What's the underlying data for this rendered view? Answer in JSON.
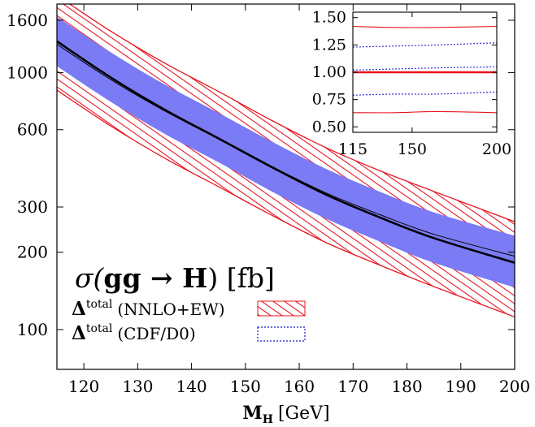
{
  "chart_data": [
    {
      "type": "area",
      "ylog": true,
      "xlim": [
        115,
        200
      ],
      "ylim": [
        70,
        1850
      ],
      "xticks": [
        {
          "v": 120,
          "label": "120"
        },
        {
          "v": 130,
          "label": "130"
        },
        {
          "v": 140,
          "label": "140"
        },
        {
          "v": 150,
          "label": "150"
        },
        {
          "v": 160,
          "label": "160"
        },
        {
          "v": 170,
          "label": "170"
        },
        {
          "v": 180,
          "label": "180"
        },
        {
          "v": 190,
          "label": "190"
        },
        {
          "v": 200,
          "label": "200"
        }
      ],
      "yticks": [
        {
          "v": 100,
          "label": "100"
        },
        {
          "v": 200,
          "label": "200"
        },
        {
          "v": 300,
          "label": "300"
        },
        {
          "v": 600,
          "label": "600"
        },
        {
          "v": 1000,
          "label": "1000"
        },
        {
          "v": 1600,
          "label": "1600"
        }
      ],
      "xlabel": {
        "main": "M",
        "sub": "H",
        "unit": "[GeV]"
      },
      "title": {
        "prefix": "σ(",
        "bold": "gg → H",
        "suffix": ") [fb]"
      },
      "x": [
        115,
        125,
        135,
        145,
        155,
        165,
        175,
        185,
        200
      ],
      "series": [
        {
          "name": "NNLO+EW",
          "role": "band_outer_upper",
          "color": "#e8141e",
          "values": [
            2000,
            1450,
            1090,
            845,
            650,
            510,
            415,
            345,
            263
          ]
        },
        {
          "name": "NNLO+EW",
          "role": "band_outer_lower",
          "color": "#e8141e",
          "values": [
            855,
            620,
            465,
            360,
            278,
            218,
            178,
            147,
            112
          ]
        },
        {
          "name": "CDF/D0",
          "role": "band_inner_upper",
          "color": "#7b7bf5",
          "values": [
            1650,
            1200,
            900,
            698,
            538,
            422,
            344,
            286,
            232
          ]
        },
        {
          "name": "CDF/D0",
          "role": "band_inner_lower",
          "color": "#7b7bf5",
          "values": [
            1060,
            770,
            578,
            448,
            344,
            270,
            220,
            182,
            146
          ]
        },
        {
          "name": "central thick",
          "role": "central",
          "color": "#000000",
          "values": [
            1325,
            958,
            718,
            555,
            428,
            335,
            273,
            227,
            182
          ]
        },
        {
          "name": "central thin",
          "role": "central_thin",
          "color": "#000000",
          "values": [
            1290,
            940,
            710,
            552,
            430,
            340,
            280,
            235,
            193
          ]
        }
      ],
      "legend": {
        "placement": "bottom-left",
        "entries": [
          {
            "symbol": "Δ",
            "sup": "total",
            "label": "(NNLO+EW)",
            "style": "hatched",
            "color": "#e8141e"
          },
          {
            "symbol": "Δ",
            "sup": "total",
            "label": "(CDF/D0)",
            "style": "dashed-box",
            "color": "#1515d0"
          }
        ]
      }
    },
    {
      "type": "line",
      "inset": true,
      "xlim": [
        115,
        200
      ],
      "ylim": [
        0.45,
        1.55
      ],
      "xticks": [
        {
          "v": 115,
          "label": "115"
        },
        {
          "v": 150,
          "label": "150"
        },
        {
          "v": 200,
          "label": "200"
        }
      ],
      "yticks": [
        {
          "v": 0.5,
          "label": "0.50"
        },
        {
          "v": 0.75,
          "label": "0.75"
        },
        {
          "v": 1.0,
          "label": "1.00"
        },
        {
          "v": 1.25,
          "label": "1.25"
        },
        {
          "v": 1.5,
          "label": "1.50"
        }
      ],
      "x": [
        115,
        140,
        165,
        200
      ],
      "series": [
        {
          "name": "NNLO+EW upper",
          "color": "#e8141e",
          "style": "solid",
          "values": [
            1.42,
            1.41,
            1.41,
            1.42
          ]
        },
        {
          "name": "NNLO+EW lower",
          "color": "#e8141e",
          "style": "solid",
          "values": [
            0.63,
            0.63,
            0.64,
            0.63
          ]
        },
        {
          "name": "CDF/D0 upper",
          "color": "#3030d8",
          "style": "dotted",
          "values": [
            1.23,
            1.24,
            1.25,
            1.27
          ]
        },
        {
          "name": "CDF/D0 lower",
          "color": "#3030d8",
          "style": "dotted",
          "values": [
            0.79,
            0.8,
            0.8,
            0.82
          ]
        },
        {
          "name": "CDF/D0 central",
          "color": "#3030d8",
          "style": "dotted",
          "values": [
            1.02,
            1.03,
            1.04,
            1.05
          ]
        },
        {
          "name": "reference",
          "color": "#e8141e",
          "style": "thick",
          "values": [
            1.0,
            1.0,
            1.0,
            1.0
          ]
        }
      ]
    }
  ]
}
